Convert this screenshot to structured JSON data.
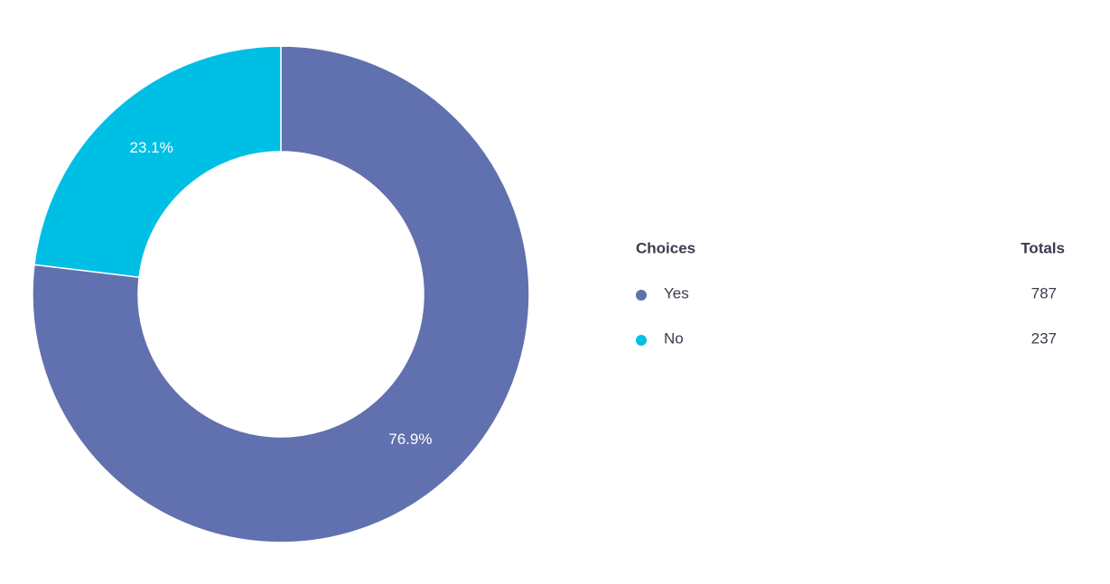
{
  "chart_data": {
    "type": "pie",
    "categories": [
      "Yes",
      "No"
    ],
    "values": [
      76.9,
      23.1
    ],
    "value_labels": [
      "76.9%",
      "23.1%"
    ],
    "colors": [
      "#6170ae",
      "#00bfe5"
    ],
    "legend_header": "Choices",
    "totals_header": "Totals",
    "totals": [
      787,
      237
    ]
  }
}
